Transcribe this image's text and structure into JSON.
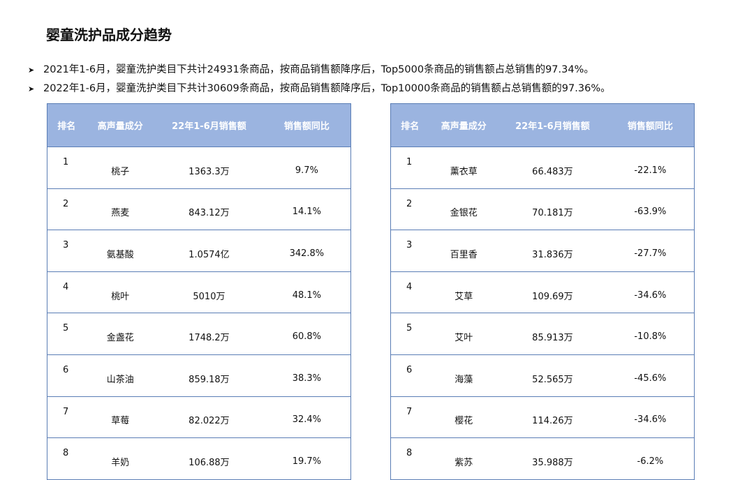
{
  "title": "婴童洗护品成分趋势",
  "bullets": [
    "2021年1-6月，婴童洗护类目下共计24931条商品，按商品销售额降序后，Top5000条商品的销售额占总销售的97.34%。",
    "2022年1-6月，婴童洗护类目下共计30609条商品，按商品销售额降序后，Top10000条商品的销售额占总销售额的97.36%。"
  ],
  "bullet_icon": "arrowhead-icon",
  "headers": [
    "排名",
    "高声量成分",
    "22年1-6月销售额",
    "销售额同比"
  ],
  "left_table": [
    [
      "1",
      "桃子",
      "1363.3万",
      "9.7%"
    ],
    [
      "2",
      "燕麦",
      "843.12万",
      "14.1%"
    ],
    [
      "3",
      "氨基酸",
      "1.0574亿",
      "342.8%"
    ],
    [
      "4",
      "桃叶",
      "5010万",
      "48.1%"
    ],
    [
      "5",
      "金盏花",
      "1748.2万",
      "60.8%"
    ],
    [
      "6",
      "山茶油",
      "859.18万",
      "38.3%"
    ],
    [
      "7",
      "草莓",
      "82.022万",
      "32.4%"
    ],
    [
      "8",
      "羊奶",
      "106.88万",
      "19.7%"
    ]
  ],
  "right_table": [
    [
      "1",
      "薰衣草",
      "66.483万",
      "-22.1%"
    ],
    [
      "2",
      "金银花",
      "70.181万",
      "-63.9%"
    ],
    [
      "3",
      "百里香",
      "31.836万",
      "-27.7%"
    ],
    [
      "4",
      "艾草",
      "109.69万",
      "-34.6%"
    ],
    [
      "5",
      "艾叶",
      "85.913万",
      "-10.8%"
    ],
    [
      "6",
      "海藻",
      "52.565万",
      "-45.6%"
    ],
    [
      "7",
      "樱花",
      "114.26万",
      "-34.6%"
    ],
    [
      "8",
      "紫苏",
      "35.988万",
      "-6.2%"
    ]
  ],
  "colors": {
    "header_bg": "#9bb4e0",
    "border": "#5a7db5"
  }
}
